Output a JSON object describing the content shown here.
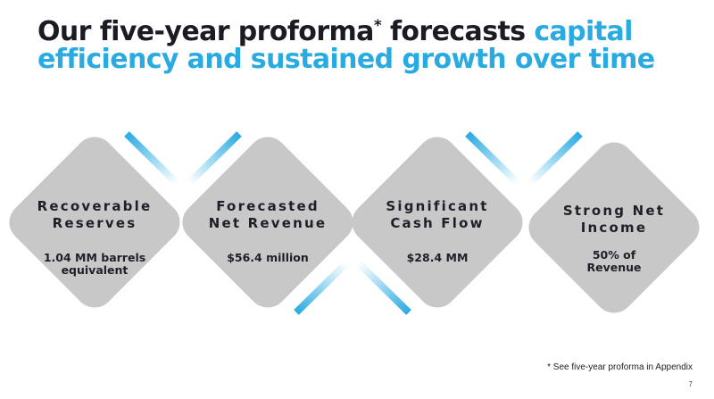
{
  "slide": {
    "title_part1": "Our five-year proforma",
    "title_star": "*",
    "title_part2": " forecasts ",
    "title_accent": "capital efficiency and sustained growth over time",
    "colors": {
      "dark": "#1b1b24",
      "accent": "#29abe2",
      "card": "#c8c8c8"
    },
    "cards": [
      {
        "title_line1": "Recoverable",
        "title_line2": "Reserves",
        "value_line1": "1.04 MM barrels",
        "value_line2": "equivalent"
      },
      {
        "title_line1": "Forecasted",
        "title_line2": "Net Revenue",
        "value_line1": "$56.4 million",
        "value_line2": ""
      },
      {
        "title_line1": "Significant",
        "title_line2": "Cash Flow",
        "value_line1": "$28.4 MM",
        "value_line2": ""
      },
      {
        "title_line1": "Strong Net",
        "title_line2": "Income",
        "value_line1": "50% of",
        "value_line2": "Revenue"
      }
    ],
    "footnote": "* See five-year proforma in Appendix",
    "page_number": "7"
  }
}
